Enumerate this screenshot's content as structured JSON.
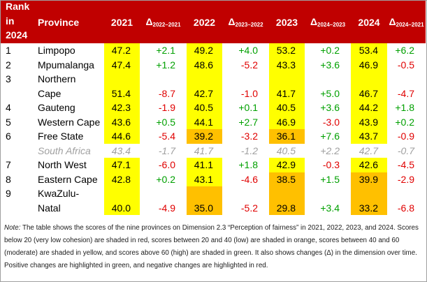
{
  "header": {
    "rank_line1": "Rank",
    "rank_line2": "in",
    "rank_line3": "2024",
    "province": "Province",
    "y2021": "2021",
    "d1_main": "Δ",
    "d1_sub": "2022–2021",
    "y2022": "2022",
    "d2_main": "Δ",
    "d2_sub": "2023–2022",
    "y2023": "2023",
    "d3_main": "Δ",
    "d3_sub": "2024–2023",
    "y2024": "2024",
    "d4_main": "Δ",
    "d4_sub": "2024–2021"
  },
  "rows": [
    {
      "rank": "1",
      "province": "Limpopo",
      "v2021": "47.2",
      "d1": "+2.1",
      "v2022": "49.2",
      "d2": "+4.0",
      "v2023": "53.2",
      "d3": "+0.2",
      "v2024": "53.4",
      "d4": "+6.2"
    },
    {
      "rank": "2",
      "province": "Mpumalanga",
      "v2021": "47.4",
      "d1": "+1.2",
      "v2022": "48.6",
      "d2": "-5.2",
      "v2023": "43.3",
      "d3": "+3.6",
      "v2024": "46.9",
      "d4": "-0.5"
    },
    {
      "rank": "3",
      "province_line1": "Northern",
      "province_line2": "Cape",
      "v2021": "51.4",
      "d1": "-8.7",
      "v2022": "42.7",
      "d2": "-1.0",
      "v2023": "41.7",
      "d3": "+5.0",
      "v2024": "46.7",
      "d4": "-4.7"
    },
    {
      "rank": "4",
      "province": "Gauteng",
      "v2021": "42.3",
      "d1": "-1.9",
      "v2022": "40.5",
      "d2": "+0.1",
      "v2023": "40.5",
      "d3": "+3.6",
      "v2024": "44.2",
      "d4": "+1.8"
    },
    {
      "rank": "5",
      "province": "Western Cape",
      "v2021": "43.6",
      "d1": "+0.5",
      "v2022": "44.1",
      "d2": "+2.7",
      "v2023": "46.9",
      "d3": "-3.0",
      "v2024": "43.9",
      "d4": "+0.2"
    },
    {
      "rank": "6",
      "province": "Free State",
      "v2021": "44.6",
      "d1": "-5.4",
      "v2022": "39.2",
      "d2": "-3.2",
      "v2023": "36.1",
      "d3": "+7.6",
      "v2024": "43.7",
      "d4": "-0.9"
    },
    {
      "rank": "",
      "province": "South Africa",
      "v2021": "43.4",
      "d1": "-1.7",
      "v2022": "41.7",
      "d2": "-1.2",
      "v2023": "40.5",
      "d3": "+2.2",
      "v2024": "42.7",
      "d4": "-0.7"
    },
    {
      "rank": "7",
      "province": "North West",
      "v2021": "47.1",
      "d1": "-6.0",
      "v2022": "41.1",
      "d2": "+1.8",
      "v2023": "42.9",
      "d3": "-0.3",
      "v2024": "42.6",
      "d4": "-4.5"
    },
    {
      "rank": "8",
      "province": "Eastern Cape",
      "v2021": "42.8",
      "d1": "+0.2",
      "v2022": "43.1",
      "d2": "-4.6",
      "v2023": "38.5",
      "d3": "+1.5",
      "v2024": "39.9",
      "d4": "-2.9"
    },
    {
      "rank": "9",
      "province_line1": "KwaZulu-",
      "province_line2": "Natal",
      "v2021": "40.0",
      "d1": "-4.9",
      "v2022": "35.0",
      "d2": "-5.2",
      "v2023": "29.8",
      "d3": "+3.4",
      "v2024": "33.2",
      "d4": "-6.8"
    }
  ],
  "colors": {
    "header_bg": "#c00000",
    "yellow_moderate": "#ffff00",
    "orange_low": "#ffc000",
    "positive_green": "#00a000",
    "negative_red": "#e00000"
  },
  "note": {
    "label": "Note:",
    "text": " The table shows the scores of the nine provinces on Dimension 2.3 “Perception of fairness” in 2021, 2022, 2023, and 2024. Scores below 20 (very low cohesion) are shaded in red, scores between 20 and 40 (low) are shaded in orange, scores between 40 and 60 (moderate) are shaded in yellow, and scores above 60 (high) are shaded in green. It also shows changes (Δ) in the dimension over time. Positive changes are highlighted in green, and negative changes are highlighted in red."
  }
}
